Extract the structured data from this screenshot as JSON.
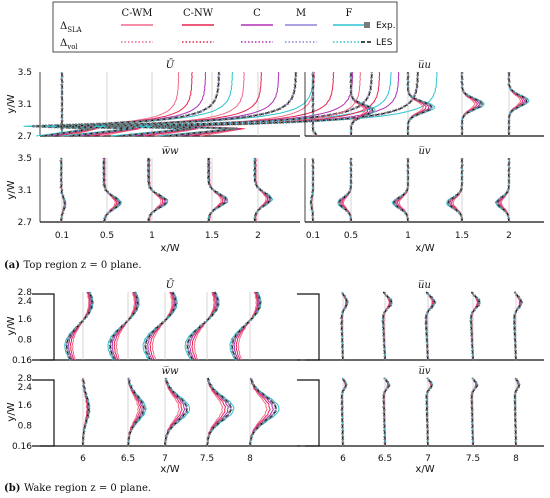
{
  "legend": {
    "models": [
      {
        "label": "C-WM",
        "color": "#f06a8a"
      },
      {
        "label": "C-NW",
        "color": "#e8224f"
      },
      {
        "label": "C",
        "color": "#b02fb8"
      },
      {
        "label": "M",
        "color": "#8f84d8"
      },
      {
        "label": "F",
        "color": "#2fc3d2"
      }
    ],
    "row_labels": [
      "Δ_SLA",
      "Δ_vol"
    ],
    "markers": [
      {
        "label": "Exp.",
        "color": "#7a7a7a"
      },
      {
        "label": "LES",
        "color": "#111111"
      }
    ]
  },
  "captions": {
    "a": {
      "tag": "(a)",
      "text": "Top region z = 0 plane."
    },
    "b": {
      "tag": "(b)",
      "text": "Wake region z = 0 plane."
    }
  },
  "chart_data": [
    {
      "type": "line",
      "region": "top",
      "panels": [
        {
          "title": "Ū",
          "ylabel": "y/W",
          "yticks": [
            "3.5",
            "3.1",
            "2.7"
          ],
          "ylim": [
            2.7,
            3.5
          ]
        },
        {
          "title": "u̅u",
          "yticks": [],
          "ylim": [
            2.7,
            3.5
          ]
        },
        {
          "title": "w̅w",
          "ylabel": "y/W",
          "yticks": [
            "3.5",
            "3.1",
            "2.7"
          ],
          "ylim": [
            2.7,
            3.5
          ]
        },
        {
          "title": "u̅v",
          "yticks": [],
          "ylim": [
            2.7,
            3.5
          ]
        }
      ],
      "xlabel": "x/W",
      "xticks": [
        "0.1",
        "0.5",
        "1",
        "1.5",
        "2"
      ],
      "stations_x": [
        0.1,
        0.5,
        1.0,
        1.5,
        2.0
      ],
      "series": [
        "C-WM",
        "C-NW",
        "C",
        "M",
        "F",
        "Exp.",
        "LES"
      ]
    },
    {
      "type": "line",
      "region": "wake",
      "panels": [
        {
          "title": "Ū",
          "ylabel": "y/W",
          "yticks": [
            "2.8",
            "2.4",
            "1.6",
            "0.8",
            "0.16"
          ],
          "ylim": [
            0.16,
            2.8
          ]
        },
        {
          "title": "u̅u",
          "yticks": [],
          "ylim": [
            0.16,
            2.8
          ]
        },
        {
          "title": "w̅w",
          "ylabel": "y/W",
          "yticks": [
            "2.8",
            "2.4",
            "1.6",
            "0.8",
            "0.16"
          ],
          "ylim": [
            0.16,
            2.8
          ]
        },
        {
          "title": "u̅v",
          "yticks": [],
          "ylim": [
            0.16,
            2.8
          ]
        }
      ],
      "xlabel": "x/W",
      "xticks": [
        "6",
        "6.5",
        "7",
        "7.5",
        "8"
      ],
      "stations_x": [
        6,
        6.5,
        7,
        7.5,
        8
      ],
      "series": [
        "C-WM",
        "C-NW",
        "C",
        "M",
        "F",
        "Exp.",
        "LES"
      ]
    }
  ]
}
